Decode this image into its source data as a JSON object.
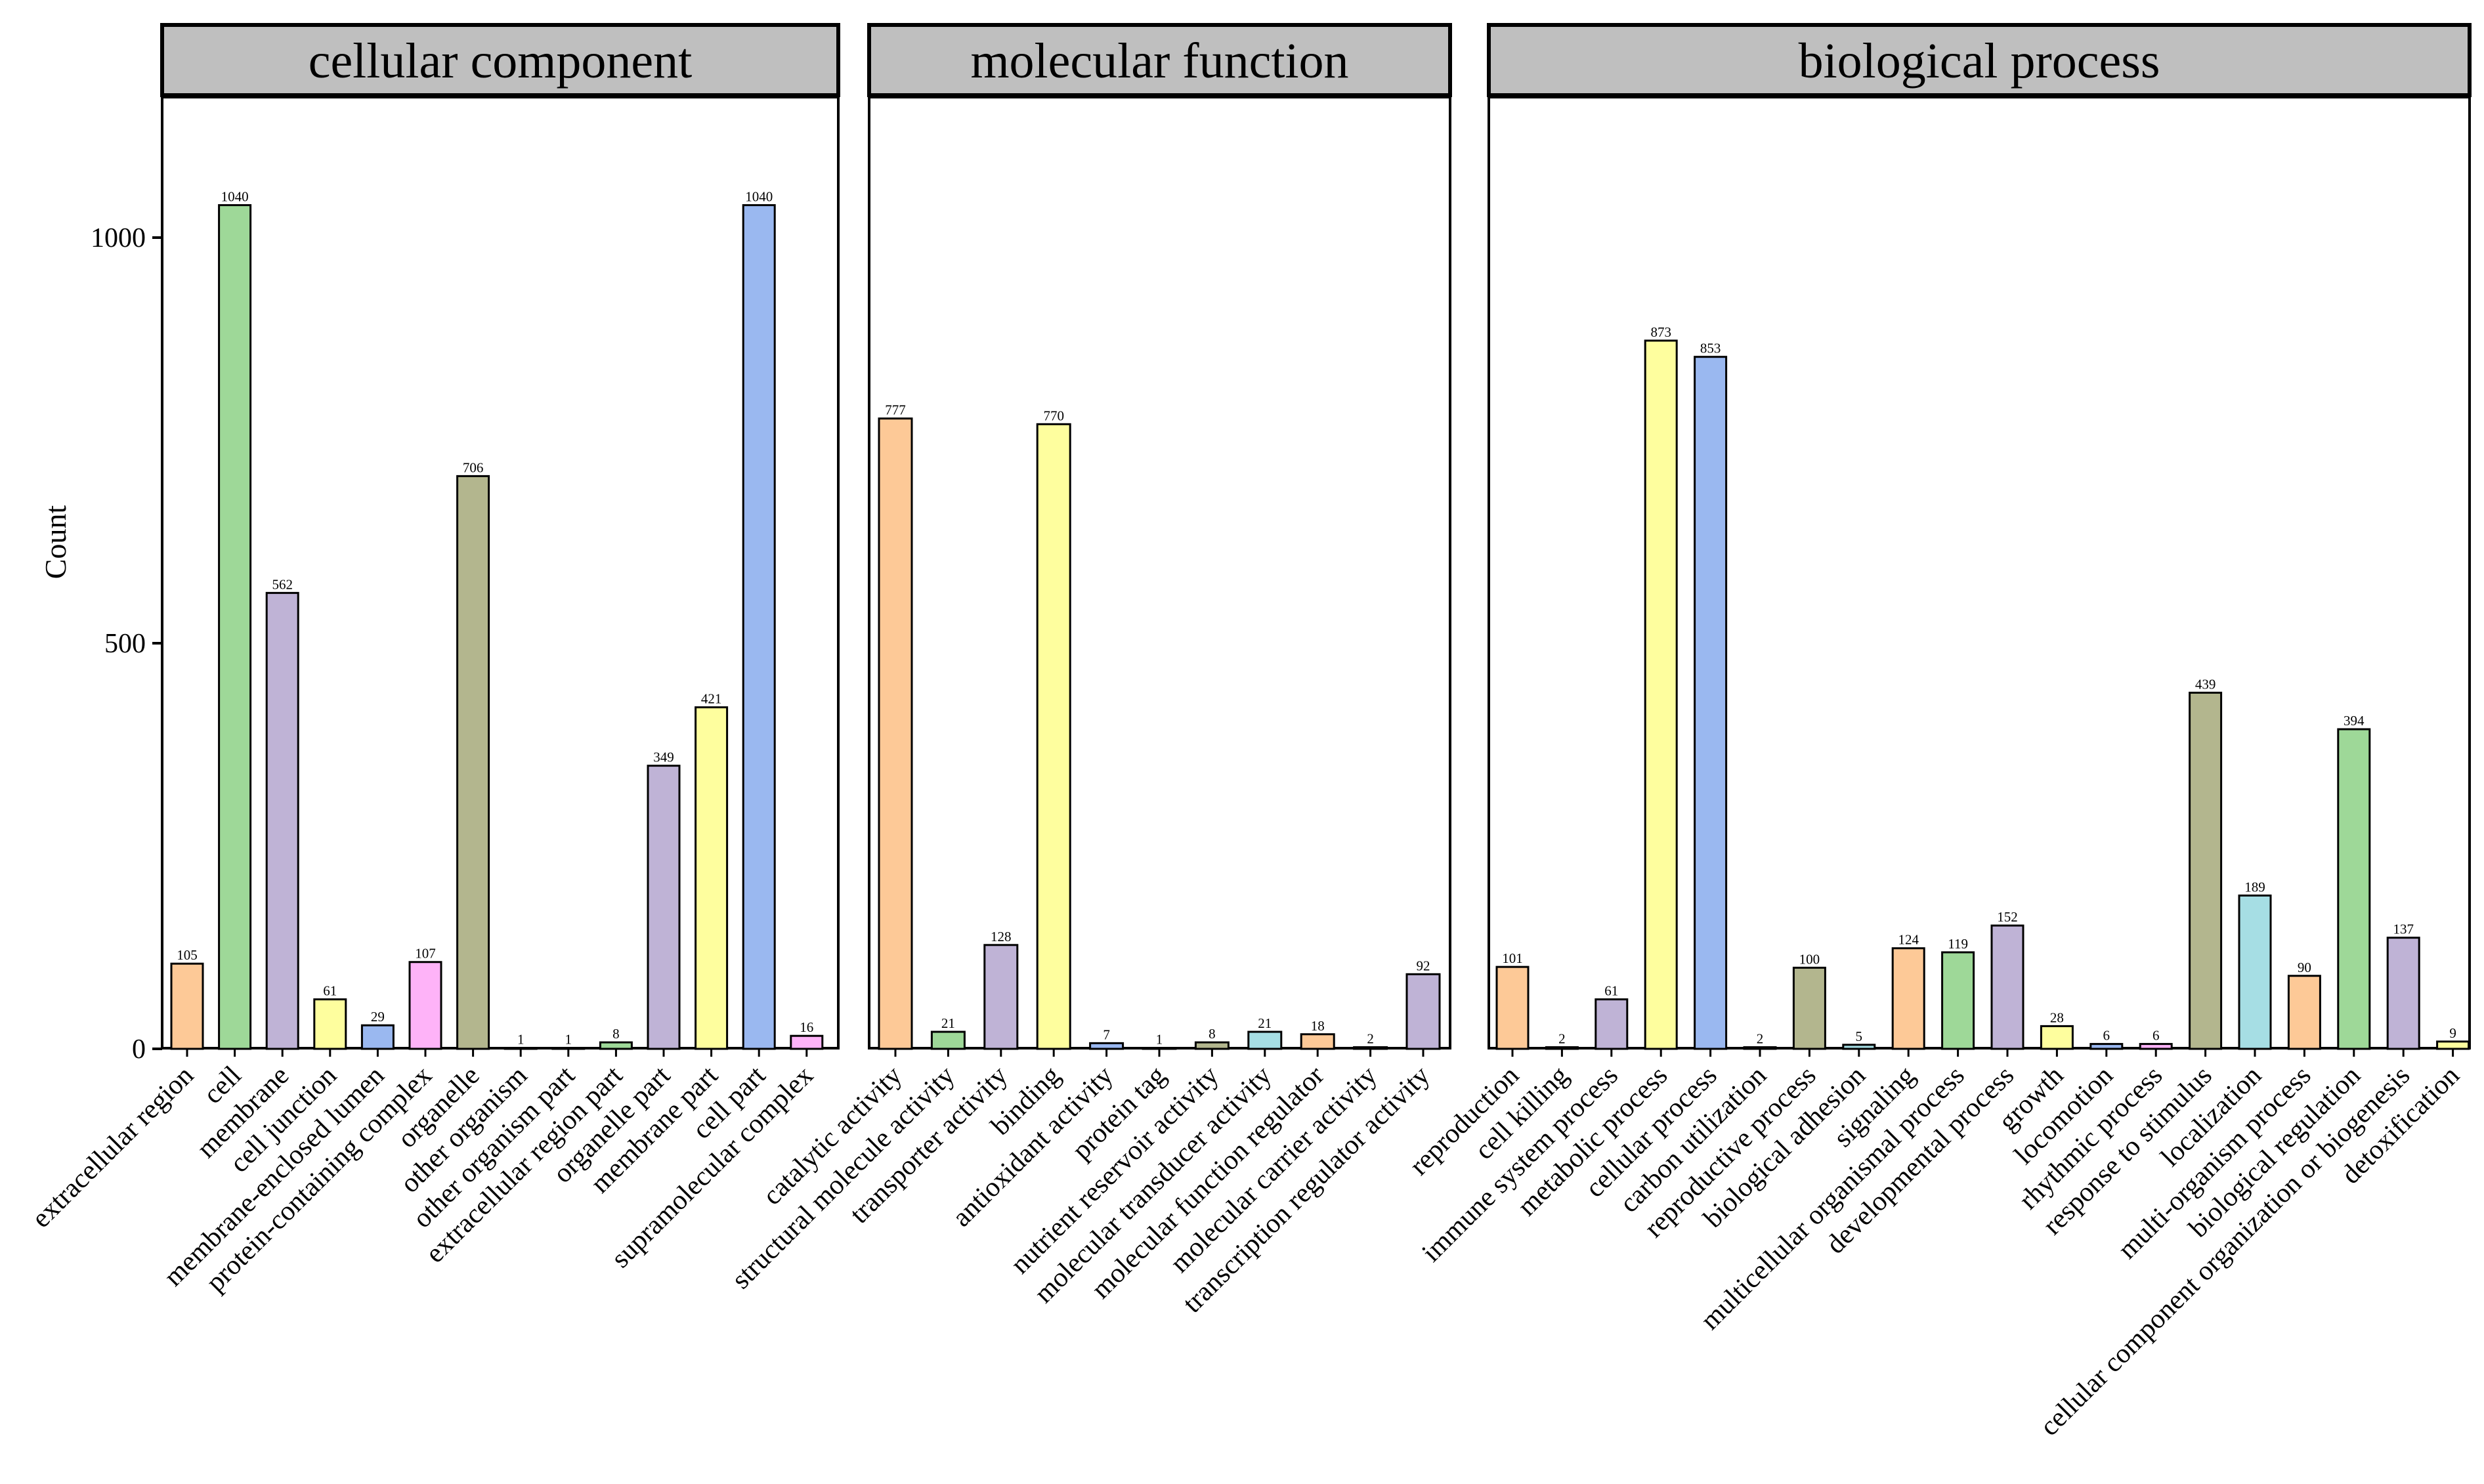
{
  "chart_data": {
    "type": "bar",
    "ylabel": "Count",
    "yticks": [
      0,
      500,
      1000
    ],
    "panels": [
      {
        "title": "cellular component",
        "categories": [
          "extracellular region",
          "cell",
          "membrane",
          "cell junction",
          "membrane-enclosed lumen",
          "protein-containing complex",
          "organelle",
          "other organism",
          "other organism part",
          "extracellular region part",
          "organelle part",
          "membrane part",
          "cell part",
          "supramolecular complex"
        ],
        "values": [
          105,
          1040,
          562,
          61,
          29,
          107,
          706,
          1,
          1,
          8,
          349,
          421,
          1040,
          16
        ],
        "colors": [
          "#FDC997",
          "#9ED898",
          "#BFB3D6",
          "#FEFE9E",
          "#9AB8F0",
          "#FEB3F8",
          "#B3B68E",
          "#FEFE9E",
          "#9AB8F0",
          "#9ED898",
          "#BFB3D6",
          "#FEFE9E",
          "#9AB8F0",
          "#FEB3F8"
        ]
      },
      {
        "title": "molecular function",
        "categories": [
          "catalytic activity",
          "structural molecule activity",
          "transporter activity",
          "binding",
          "antioxidant activity",
          "protein tag",
          "nutrient reservoir activity",
          "molecular transducer activity",
          "molecular function regulator",
          "molecular carrier activity",
          "transcription regulator activity"
        ],
        "values": [
          777,
          21,
          128,
          770,
          7,
          1,
          8,
          21,
          18,
          2,
          92
        ],
        "colors": [
          "#FDC997",
          "#9ED898",
          "#BFB3D6",
          "#FEFE9E",
          "#9AB8F0",
          "#FEB3F8",
          "#B3B68E",
          "#A6DEE4",
          "#FDC997",
          "#9ED898",
          "#BFB3D6"
        ]
      },
      {
        "title": "biological process",
        "categories": [
          "reproduction",
          "cell killing",
          "immune system process",
          "metabolic process",
          "cellular process",
          "carbon utilization",
          "reproductive process",
          "biological adhesion",
          "signaling",
          "multicellular organismal process",
          "developmental process",
          "growth",
          "locomotion",
          "rhythmic process",
          "response to stimulus",
          "localization",
          "multi-organism process",
          "biological regulation",
          "cellular component organization or biogenesis",
          "detoxification"
        ],
        "values": [
          101,
          2,
          61,
          873,
          853,
          2,
          100,
          5,
          124,
          119,
          152,
          28,
          6,
          6,
          439,
          189,
          90,
          394,
          137,
          9
        ],
        "colors": [
          "#FDC997",
          "#9ED898",
          "#BFB3D6",
          "#FEFE9E",
          "#9AB8F0",
          "#FEB3F8",
          "#B3B68E",
          "#A6DEE4",
          "#FDC997",
          "#9ED898",
          "#BFB3D6",
          "#FEFE9E",
          "#9AB8F0",
          "#FEB3F8",
          "#B3B68E",
          "#A6DEE4",
          "#FDC997",
          "#9ED898",
          "#BFB3D6",
          "#FEFE9E"
        ]
      }
    ]
  }
}
